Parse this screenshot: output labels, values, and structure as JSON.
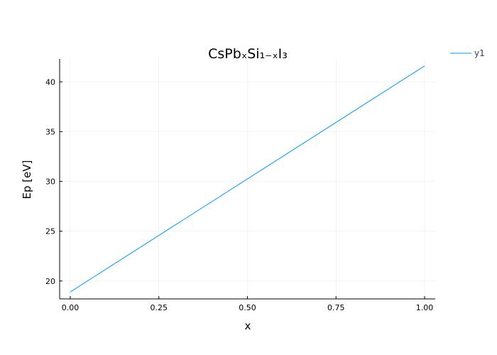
{
  "chart_data": {
    "type": "line",
    "title": "CsPbₓSi₁₋ₓI₃",
    "xlabel": "x",
    "ylabel": "Ep [eV]",
    "xlim": [
      -0.03,
      1.03
    ],
    "ylim": [
      18.2,
      42.3
    ],
    "xticks": [
      0.0,
      0.25,
      0.5,
      0.75,
      1.0
    ],
    "xtick_labels": [
      "0.00",
      "0.25",
      "0.50",
      "0.75",
      "1.00"
    ],
    "yticks": [
      20,
      25,
      30,
      35,
      40
    ],
    "ytick_labels": [
      "20",
      "25",
      "30",
      "35",
      "40"
    ],
    "grid": true,
    "legend_position": "top-right, outside plot",
    "series": [
      {
        "name": "y1",
        "color": "#009af9",
        "x": [
          0.0,
          1.0
        ],
        "y": [
          18.9,
          41.6
        ]
      }
    ]
  }
}
